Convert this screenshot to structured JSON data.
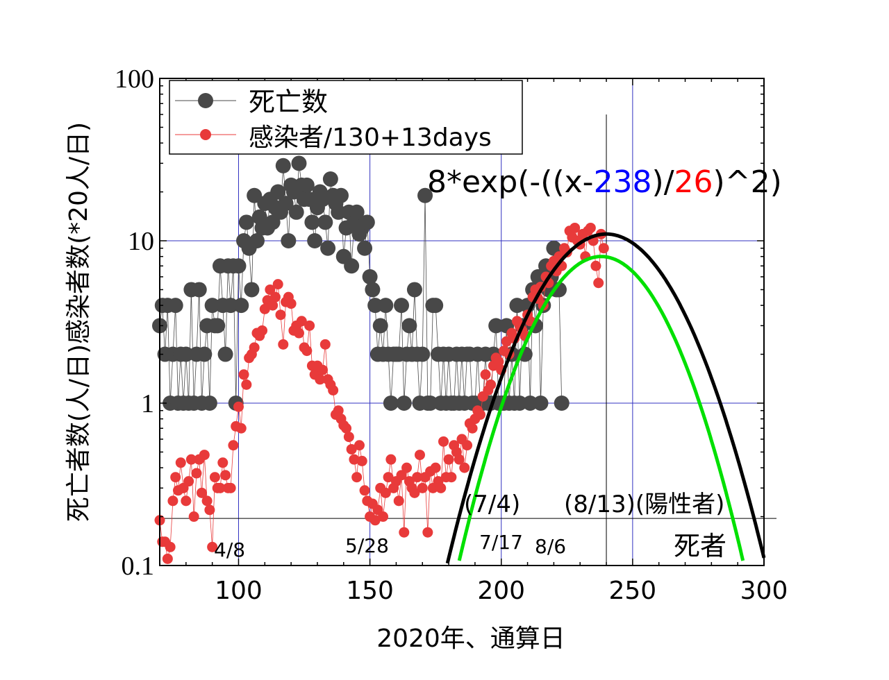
{
  "chart_data": {
    "type": "scatter",
    "xlabel": "2020年、通算日",
    "ylabel": "死亡者数(人/日)感染者数(*20人/日)",
    "xlim": [
      70,
      300
    ],
    "ylim": [
      0.1,
      100
    ],
    "yscale": "log",
    "x_ticks": [
      "100",
      "150",
      "200",
      "250",
      "300"
    ],
    "y_ticks": [
      "0.1",
      "1",
      "10",
      "100"
    ],
    "grid": true,
    "legend_placement": "top-left",
    "colors": {
      "deaths": "#484848",
      "infections": "#e83a3a",
      "fit_black": "#000000",
      "fit_green": "#00e000",
      "grid": "#3030c0",
      "formula_center": "#0000ff",
      "formula_width": "#ff0000"
    },
    "series": [
      {
        "name": "死亡数",
        "x_start": 70,
        "values": [
          3,
          4,
          2,
          4,
          1,
          2,
          4,
          1,
          2,
          1,
          2,
          1,
          5,
          1,
          2,
          5,
          1,
          2,
          3,
          1,
          4,
          3,
          3,
          7,
          4,
          2,
          7,
          4,
          7,
          1,
          7,
          4,
          10,
          13,
          9,
          5,
          19,
          10,
          14,
          12,
          17,
          12,
          18,
          13,
          16,
          20,
          15,
          29,
          17,
          10,
          22,
          20,
          15,
          30,
          22,
          18,
          22,
          18,
          13,
          10,
          16,
          20,
          18,
          13,
          9,
          24,
          19,
          17,
          15,
          19,
          8,
          12,
          15,
          7,
          13,
          15,
          11,
          12,
          9,
          13,
          6,
          5,
          4,
          2,
          3,
          2,
          4,
          2,
          1,
          2,
          2,
          2,
          4,
          1,
          2,
          3,
          2,
          5,
          2,
          1,
          2,
          19,
          1,
          1,
          4,
          4,
          2,
          1,
          2,
          1,
          2,
          1,
          1,
          2,
          1,
          2,
          1,
          2,
          2,
          1,
          1,
          2,
          1,
          1,
          2,
          1,
          1,
          2,
          3,
          1,
          1,
          1,
          3,
          1,
          2,
          1,
          4,
          1,
          3,
          2,
          4,
          1,
          5,
          3,
          6,
          1,
          4,
          7,
          5,
          6,
          9,
          5,
          5,
          1
        ]
      },
      {
        "name": "感染者/130+13days",
        "x_start": 70,
        "values": [
          0.19,
          0.14,
          0.14,
          0.11,
          0.13,
          0.25,
          0.35,
          0.29,
          0.43,
          0.3,
          0.25,
          0.33,
          0.45,
          0.2,
          0.37,
          0.45,
          0.28,
          0.48,
          0.25,
          0.22,
          0.13,
          0.35,
          0.3,
          0.3,
          0.43,
          0.36,
          0.3,
          0.3,
          0.55,
          0.72,
          0.95,
          0.7,
          1.5,
          1.3,
          1.9,
          2.0,
          2.2,
          2.7,
          2.6,
          2.8,
          3.8,
          4.3,
          5.0,
          4.0,
          4.5,
          5.4,
          3.5,
          2.3,
          4.2,
          4.5,
          4.1,
          2.8,
          3.0,
          2.7,
          3.2,
          2.2,
          2.1,
          3.0,
          1.7,
          1.5,
          1.7,
          1.4,
          1.6,
          2.3,
          1.4,
          1.3,
          1.2,
          0.85,
          0.9,
          0.8,
          0.73,
          0.7,
          0.62,
          0.52,
          0.45,
          0.35,
          0.55,
          0.44,
          0.29,
          0.25,
          0.2,
          0.24,
          0.19,
          0.22,
          0.3,
          0.2,
          0.28,
          0.35,
          0.45,
          0.3,
          0.33,
          0.25,
          0.36,
          0.16,
          0.4,
          0.33,
          0.3,
          0.28,
          0.35,
          0.48,
          0.3,
          0.35,
          0.16,
          0.38,
          0.3,
          0.4,
          0.33,
          0.3,
          0.58,
          0.35,
          0.45,
          0.35,
          0.55,
          0.5,
          0.45,
          0.6,
          0.4,
          0.55,
          0.75,
          0.7,
          0.8,
          0.9,
          0.85,
          1.1,
          1.5,
          1.2,
          1.3,
          1.7,
          1.9,
          1.8,
          1.6,
          2.1,
          2.4,
          2.0,
          2.7,
          2.5,
          3.2,
          3.0,
          2.8,
          2.6,
          3.5,
          3.2,
          4.5,
          5.0,
          4.4,
          5.2,
          4.0,
          6.0,
          5.5,
          7.0,
          7.5,
          6.5,
          8.0,
          7.0,
          9.0,
          8.5,
          11.5,
          10.5,
          12,
          10,
          9.5,
          11,
          8,
          11.5,
          12,
          10,
          7,
          5.5,
          11,
          9.0
        ]
      }
    ],
    "fits": [
      {
        "color": "black",
        "amplitude": 11,
        "center": 240,
        "width": 28
      },
      {
        "color": "green",
        "amplitude": 8,
        "center": 238,
        "width": 26
      }
    ],
    "formula": {
      "prefix": "8*exp(-((x-",
      "center": "238",
      "mid": ")/",
      "width": "26",
      "suffix": ")^2)"
    },
    "reference_lines": {
      "vertical_x": 240,
      "horizontal_y": 0.195
    },
    "annotations": {
      "d48": "4/8",
      "d528": "5/28",
      "d717": "7/17",
      "d86": "8/6",
      "d74": "(7/4)",
      "d813": "(8/13)(陽性者)",
      "deaths": "死者"
    }
  }
}
